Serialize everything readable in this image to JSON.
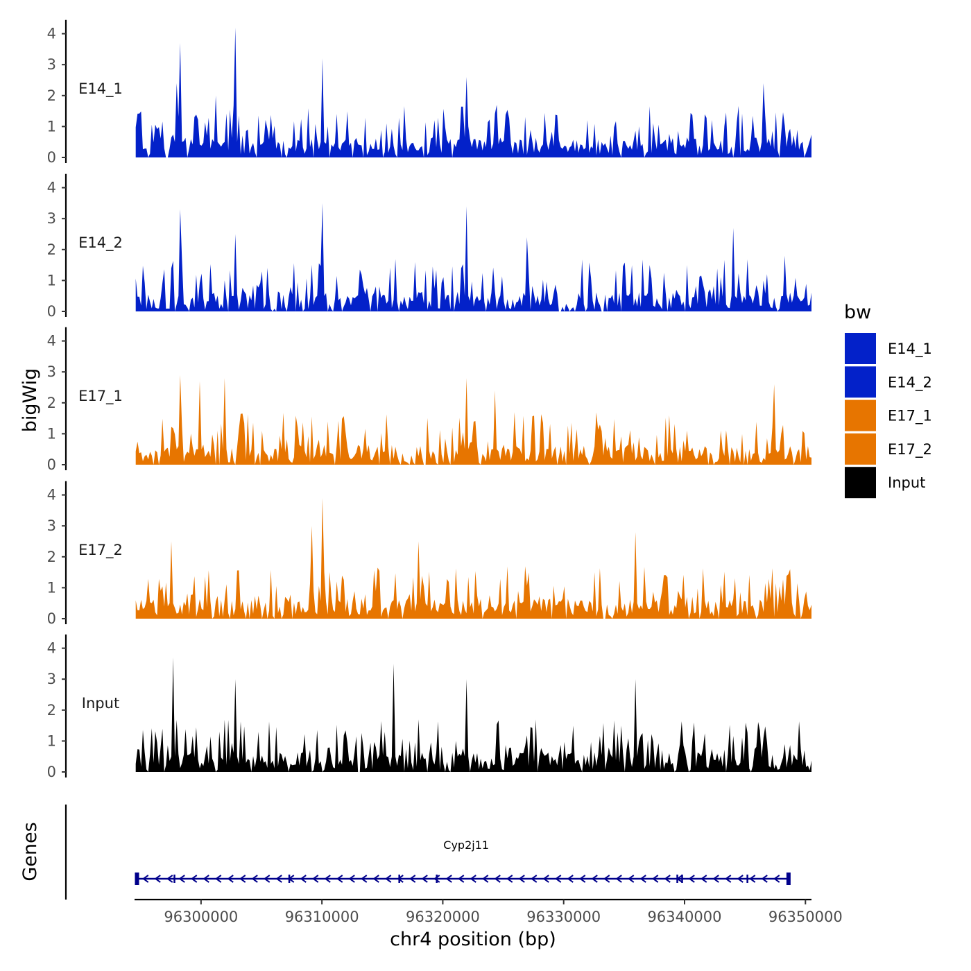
{
  "chart_data": {
    "type": "area",
    "title": "",
    "ylabel": "bigWig",
    "xlabel": "chr4 position (bp)",
    "chromosome": "chr4",
    "xlim": [
      96294500,
      96350500
    ],
    "ylim": [
      0,
      4.3
    ],
    "y_ticks": [
      0,
      1,
      2,
      3,
      4
    ],
    "x_ticks": [
      96300000,
      96310000,
      96320000,
      96330000,
      96340000,
      96350000
    ],
    "x_tick_labels": [
      "96300000",
      "96310000",
      "96320000",
      "96330000",
      "96340000",
      "96350000"
    ],
    "series": [
      {
        "name": "E14_1",
        "color": "#0321C9",
        "seed": 11,
        "peaks": [
          [
            96298300,
            3.7
          ],
          [
            96302800,
            4.2
          ],
          [
            96310050,
            3.2
          ],
          [
            96298000,
            2.4
          ],
          [
            96301200,
            2.0
          ],
          [
            96322000,
            2.6
          ],
          [
            96346500,
            2.4
          ]
        ]
      },
      {
        "name": "E14_2",
        "color": "#0321C9",
        "seed": 23,
        "peaks": [
          [
            96298300,
            3.3
          ],
          [
            96310000,
            3.5
          ],
          [
            96322000,
            3.4
          ],
          [
            96302800,
            2.5
          ],
          [
            96326900,
            2.4
          ],
          [
            96344100,
            2.7
          ],
          [
            96348300,
            1.8
          ]
        ]
      },
      {
        "name": "E17_1",
        "color": "#E77500",
        "seed": 37,
        "peaks": [
          [
            96298300,
            2.9
          ],
          [
            96299900,
            2.7
          ],
          [
            96301900,
            2.8
          ],
          [
            96322000,
            2.8
          ],
          [
            96324300,
            2.4
          ],
          [
            96347400,
            2.6
          ]
        ]
      },
      {
        "name": "E17_2",
        "color": "#E77500",
        "seed": 51,
        "peaks": [
          [
            96309200,
            3.0
          ],
          [
            96310050,
            3.9
          ],
          [
            96297600,
            2.5
          ],
          [
            96336000,
            2.8
          ],
          [
            96318000,
            2.5
          ]
        ]
      },
      {
        "name": "Input",
        "color": "#000000",
        "seed": 67,
        "peaks": [
          [
            96297700,
            3.7
          ],
          [
            96315900,
            3.5
          ],
          [
            96336000,
            3.0
          ],
          [
            96302800,
            3.0
          ],
          [
            96322000,
            3.0
          ]
        ]
      }
    ],
    "legend": {
      "title": "bw",
      "entries": [
        {
          "label": "E14_1",
          "color": "#0321C9"
        },
        {
          "label": "E14_2",
          "color": "#0321C9"
        },
        {
          "label": "E17_1",
          "color": "#E77500"
        },
        {
          "label": "E17_2",
          "color": "#E77500"
        },
        {
          "label": "Input",
          "color": "#000000"
        }
      ]
    },
    "genes_track": {
      "label": "Genes",
      "genes": [
        {
          "name": "Cyp2j11",
          "start": 96294600,
          "end": 96348700,
          "strand": "-",
          "color": "#00008B",
          "exons": [
            96294700,
            96297800,
            96307300,
            96316400,
            96319500,
            96339400,
            96339800,
            96345200,
            96348600
          ]
        }
      ]
    }
  }
}
